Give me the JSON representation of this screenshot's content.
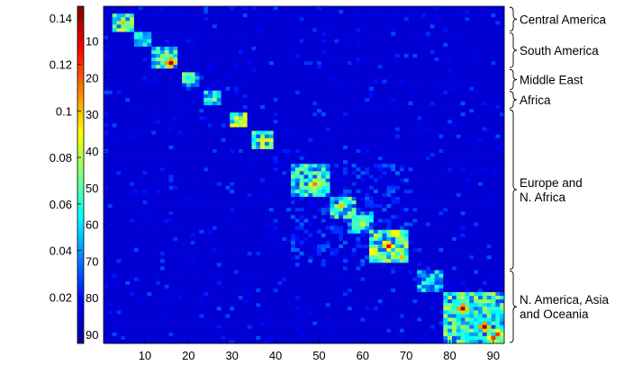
{
  "chart_data": {
    "type": "heatmap",
    "matrix_size": 92,
    "colormap": "jet",
    "colorbar": {
      "ticks": [
        "0.14",
        "0.12",
        "0.1",
        "0.08",
        "0.06",
        "0.04",
        "0.02"
      ],
      "tick_values": [
        0.14,
        0.12,
        0.1,
        0.08,
        0.06,
        0.04,
        0.02
      ],
      "range": [
        0,
        0.145
      ]
    },
    "x_ticks": [
      "10",
      "20",
      "30",
      "40",
      "50",
      "60",
      "70",
      "80",
      "90"
    ],
    "x_tick_values": [
      10,
      20,
      30,
      40,
      50,
      60,
      70,
      80,
      90
    ],
    "y_ticks": [
      "10",
      "20",
      "30",
      "40",
      "50",
      "60",
      "70",
      "80",
      "90"
    ],
    "y_tick_values": [
      10,
      20,
      30,
      40,
      50,
      60,
      70,
      80,
      90
    ],
    "regions": [
      {
        "lines": [
          "Central America"
        ],
        "start": 1,
        "end": 7
      },
      {
        "lines": [
          "South America"
        ],
        "start": 8,
        "end": 17
      },
      {
        "lines": [
          "Middle East"
        ],
        "start": 18,
        "end": 23
      },
      {
        "lines": [
          "Africa"
        ],
        "start": 24,
        "end": 28
      },
      {
        "lines": [
          "Europe and",
          "N. Africa"
        ],
        "start": 29,
        "end": 72
      },
      {
        "lines": [
          "N. America, Asia",
          "and Oceania"
        ],
        "start": 73,
        "end": 92
      }
    ],
    "blocks": [
      {
        "start": 3,
        "end": 7,
        "level": 0.085
      },
      {
        "start": 8,
        "end": 11,
        "level": 0.075
      },
      {
        "start": 12,
        "end": 17,
        "level": 0.07
      },
      {
        "start": 19,
        "end": 22,
        "level": 0.07
      },
      {
        "start": 24,
        "end": 27,
        "level": 0.07
      },
      {
        "start": 30,
        "end": 33,
        "level": 0.09
      },
      {
        "start": 35,
        "end": 39,
        "level": 0.08
      },
      {
        "start": 44,
        "end": 52,
        "level": 0.07
      },
      {
        "start": 53,
        "end": 58,
        "level": 0.07
      },
      {
        "start": 57,
        "end": 62,
        "level": 0.065
      },
      {
        "start": 62,
        "end": 70,
        "level": 0.085
      },
      {
        "start": 73,
        "end": 78,
        "level": 0.06
      },
      {
        "start": 79,
        "end": 92,
        "level": 0.075
      }
    ],
    "clusters": [
      {
        "start": 44,
        "end": 70,
        "level": 0.022
      },
      {
        "start": 79,
        "end": 92,
        "level": 0.02
      }
    ],
    "hotspots": [
      {
        "row": 5,
        "col": 5,
        "value": 0.1
      },
      {
        "row": 16,
        "col": 16,
        "value": 0.14
      },
      {
        "row": 32,
        "col": 32,
        "value": 0.09
      },
      {
        "row": 37,
        "col": 37,
        "value": 0.095
      },
      {
        "row": 49,
        "col": 49,
        "value": 0.11
      },
      {
        "row": 55,
        "col": 55,
        "value": 0.1
      },
      {
        "row": 60,
        "col": 60,
        "value": 0.09
      },
      {
        "row": 66,
        "col": 66,
        "value": 0.13
      },
      {
        "row": 69,
        "col": 69,
        "value": 0.1
      },
      {
        "row": 83,
        "col": 83,
        "value": 0.14
      },
      {
        "row": 88,
        "col": 88,
        "value": 0.14
      },
      {
        "row": 90,
        "col": 91,
        "value": 0.12
      }
    ]
  }
}
